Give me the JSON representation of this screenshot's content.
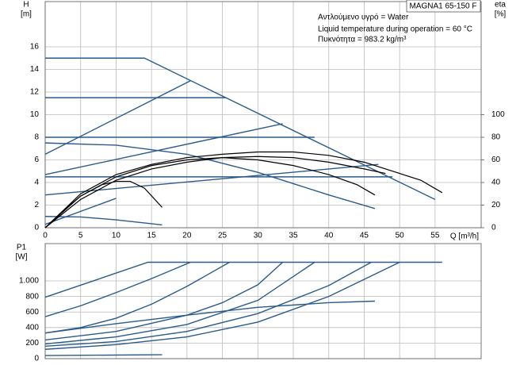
{
  "chart_data": [
    {
      "type": "line",
      "title": "MAGNA1 65-150 F",
      "annotations": [
        "Αντλούμενο υγρό = Water",
        "Liquid temperature during operation = 60 °C",
        "Πυκνότητα = 983.2 kg/m³"
      ],
      "y_label": "H",
      "y_unit": "[m]",
      "y2_label": "eta",
      "y2_unit": "[%]",
      "x_label": "Q [m³/h]",
      "xlim": [
        0,
        61.5
      ],
      "ylim": [
        0,
        20
      ],
      "y2lim": [
        0,
        200
      ],
      "grid": true,
      "xticks": [
        0,
        5,
        10,
        15,
        20,
        25,
        30,
        35,
        40,
        45,
        50,
        55
      ],
      "yticks": [
        0,
        2,
        4,
        6,
        8,
        10,
        12,
        14,
        16
      ],
      "y2ticks": [
        0,
        20,
        40,
        60,
        80,
        100
      ],
      "series": [
        {
          "color": "#2a5b8c",
          "x": [
            0,
            14,
            14.5,
            55
          ],
          "values": [
            15,
            15,
            14.85,
            2.5
          ]
        },
        {
          "color": "#2a5b8c",
          "x": [
            0,
            25.5
          ],
          "values": [
            11.5,
            11.5
          ]
        },
        {
          "color": "#2a5b8c",
          "x": [
            0,
            38
          ],
          "values": [
            8,
            8
          ]
        },
        {
          "color": "#2a5b8c",
          "x": [
            0,
            49
          ],
          "values": [
            4.5,
            4.5
          ]
        },
        {
          "color": "#2a5b8c",
          "x": [
            0,
            20.5
          ],
          "values": [
            6.5,
            13
          ]
        },
        {
          "color": "#2a5b8c",
          "x": [
            0,
            33.5
          ],
          "values": [
            4.7,
            9.2
          ]
        },
        {
          "color": "#2a5b8c",
          "x": [
            0,
            47
          ],
          "values": [
            2.9,
            5.6
          ]
        },
        {
          "color": "#2a5b8c",
          "x": [
            0,
            10
          ],
          "values": [
            0.3,
            2.6
          ]
        },
        {
          "color": "#2a5b8c",
          "x": [
            0,
            10,
            20,
            30,
            40,
            46.5
          ],
          "values": [
            7.5,
            7.3,
            6.5,
            4.9,
            2.9,
            1.7
          ]
        },
        {
          "color": "#2a5b8c",
          "x": [
            0,
            5,
            10,
            16.5
          ],
          "values": [
            1,
            0.95,
            0.7,
            0.25
          ]
        },
        {
          "color": "#000000",
          "axis": "y2",
          "x": [
            0,
            2,
            5,
            8,
            10,
            12,
            14,
            16.5
          ],
          "values": [
            0,
            12,
            28,
            38,
            41,
            41,
            35,
            18
          ]
        },
        {
          "color": "#000000",
          "axis": "y2",
          "x": [
            0,
            5,
            10,
            15,
            20,
            25,
            30,
            35,
            40,
            44,
            46.5
          ],
          "values": [
            0,
            28,
            45,
            55,
            60,
            62,
            60,
            55,
            47,
            38,
            29
          ]
        },
        {
          "color": "#000000",
          "axis": "y2",
          "x": [
            0,
            5,
            10,
            15,
            20,
            25,
            30,
            35,
            40,
            45,
            48
          ],
          "values": [
            0,
            25,
            42,
            52,
            58,
            62,
            63,
            62,
            58,
            52,
            48
          ]
        },
        {
          "color": "#000000",
          "axis": "y2",
          "x": [
            0,
            5,
            10,
            15,
            20,
            25,
            30,
            35,
            40,
            45,
            50,
            53,
            56
          ],
          "values": [
            0,
            30,
            47,
            56,
            62,
            65,
            67,
            67,
            64,
            58,
            48,
            42,
            31
          ]
        }
      ]
    },
    {
      "type": "line",
      "y_label": "P1",
      "y_unit": "[W]",
      "xlim": [
        0,
        61.5
      ],
      "ylim": [
        0,
        1480
      ],
      "grid": true,
      "yticks": [
        0,
        200,
        400,
        600,
        800,
        {
          "value": 1000,
          "label": "1.000"
        }
      ],
      "series": [
        {
          "color": "#2a5b8c",
          "x": [
            0,
            14.5,
            56
          ],
          "values": [
            790,
            1240,
            1240
          ]
        },
        {
          "color": "#2a5b8c",
          "x": [
            0,
            5,
            10,
            15,
            20.5
          ],
          "values": [
            540,
            680,
            850,
            1030,
            1240
          ]
        },
        {
          "color": "#2a5b8c",
          "x": [
            0,
            5,
            10,
            15,
            20,
            26
          ],
          "values": [
            330,
            400,
            520,
            700,
            930,
            1240
          ]
        },
        {
          "color": "#2a5b8c",
          "x": [
            0,
            10,
            20,
            25,
            30,
            33.5
          ],
          "values": [
            240,
            350,
            560,
            720,
            950,
            1240
          ]
        },
        {
          "color": "#2a5b8c",
          "x": [
            0,
            10,
            20,
            30,
            38
          ],
          "values": [
            190,
            280,
            440,
            750,
            1240
          ]
        },
        {
          "color": "#2a5b8c",
          "x": [
            0,
            10,
            20,
            30,
            40,
            46
          ],
          "values": [
            160,
            220,
            350,
            580,
            940,
            1240
          ]
        },
        {
          "color": "#2a5b8c",
          "x": [
            0,
            10,
            20,
            30,
            40,
            50
          ],
          "values": [
            120,
            180,
            280,
            470,
            800,
            1240
          ]
        },
        {
          "color": "#2a5b8c",
          "x": [
            0,
            10,
            20,
            30,
            40,
            46.5
          ],
          "values": [
            330,
            450,
            560,
            660,
            720,
            740
          ]
        },
        {
          "color": "#2a5b8c",
          "x": [
            0,
            16.5
          ],
          "values": [
            40,
            50
          ]
        }
      ]
    }
  ]
}
